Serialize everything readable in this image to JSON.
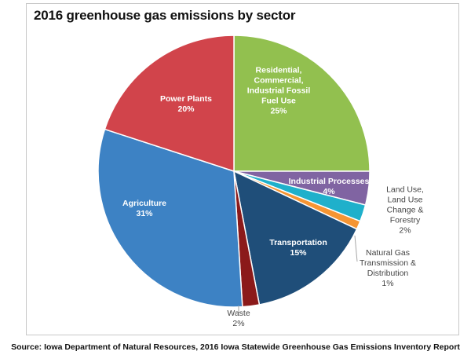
{
  "chart_data": {
    "type": "pie",
    "title": "2016 greenhouse gas emissions by sector",
    "slices": [
      {
        "lines": [
          "Residential,",
          "Commercial,",
          "Industrial Fossil",
          "Fuel Use"
        ],
        "pct_label": "25%",
        "value": 25,
        "color": "#92c04f"
      },
      {
        "lines": [
          "Industrial Processes"
        ],
        "pct_label": "4%",
        "value": 4,
        "color": "#8064a2"
      },
      {
        "lines": [
          "Land Use,",
          "Land Use",
          "Change &",
          "Forestry"
        ],
        "pct_label": "2%",
        "value": 2,
        "color": "#1fb0cb"
      },
      {
        "lines": [
          "Natural Gas",
          "Transmission &",
          "Distribution"
        ],
        "pct_label": "1%",
        "value": 1,
        "color": "#f59533"
      },
      {
        "lines": [
          "Transportation"
        ],
        "pct_label": "15%",
        "value": 15,
        "color": "#1f4e79"
      },
      {
        "lines": [
          "Waste"
        ],
        "pct_label": "2%",
        "value": 2,
        "color": "#8b1a1a"
      },
      {
        "lines": [
          "Agriculture"
        ],
        "pct_label": "31%",
        "value": 31,
        "color": "#3d82c4"
      },
      {
        "lines": [
          "Power Plants"
        ],
        "pct_label": "20%",
        "value": 20,
        "color": "#d1444b"
      }
    ]
  },
  "source": "Source: Iowa Department of Natural Resources, 2016 Iowa Statewide Greenhouse Gas Emissions Inventory Report"
}
